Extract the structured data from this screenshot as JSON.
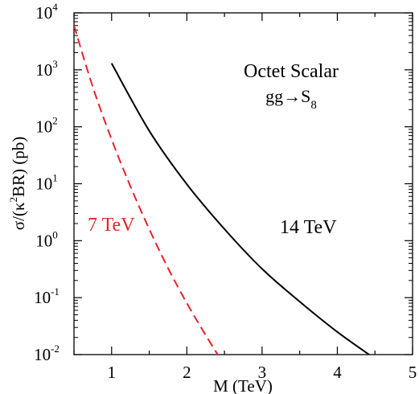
{
  "chart_data": {
    "type": "line",
    "title": "",
    "annotations": {
      "line1": "Octet Scalar",
      "line2_main": "gg→S",
      "line2_sub": "8"
    },
    "xlabel": "M (TeV)",
    "ylabel_parts": {
      "before": "σ/(κ",
      "sup": "2",
      "after": "BR) (pb)"
    },
    "xlim": [
      0.5,
      5
    ],
    "ylim_log10": [
      -2,
      4
    ],
    "yscale": "log",
    "x_ticks": [
      1,
      2,
      3,
      4,
      5
    ],
    "x_tick_labels": [
      "1",
      "2",
      "3",
      "4",
      "5"
    ],
    "y_tick_exponents": [
      -2,
      -1,
      0,
      1,
      2,
      3,
      4
    ],
    "y_tick_exponent_labels": [
      "-2",
      "-1",
      "0",
      "1",
      "2",
      "3",
      "4"
    ],
    "y_tick_base": "10",
    "grid": false,
    "legend": "none",
    "series": [
      {
        "name": "7 TeV",
        "color": "#e8222a",
        "dash": "dashed",
        "x": [
          0.5,
          0.75,
          1.0,
          1.25,
          1.5,
          1.75,
          2.0,
          2.25,
          2.5,
          2.65
        ],
        "y": [
          6000,
          500,
          60,
          9,
          1.6,
          0.33,
          0.08,
          0.022,
          0.0065,
          0.0033
        ]
      },
      {
        "name": "14 TeV",
        "color": "#000000",
        "dash": "solid",
        "x": [
          1.0,
          1.5,
          2.0,
          2.5,
          3.0,
          3.5,
          4.0,
          4.5,
          4.65
        ],
        "y": [
          1300,
          85,
          9.8,
          1.6,
          0.32,
          0.085,
          0.025,
          0.0085,
          0.0063
        ]
      }
    ]
  }
}
